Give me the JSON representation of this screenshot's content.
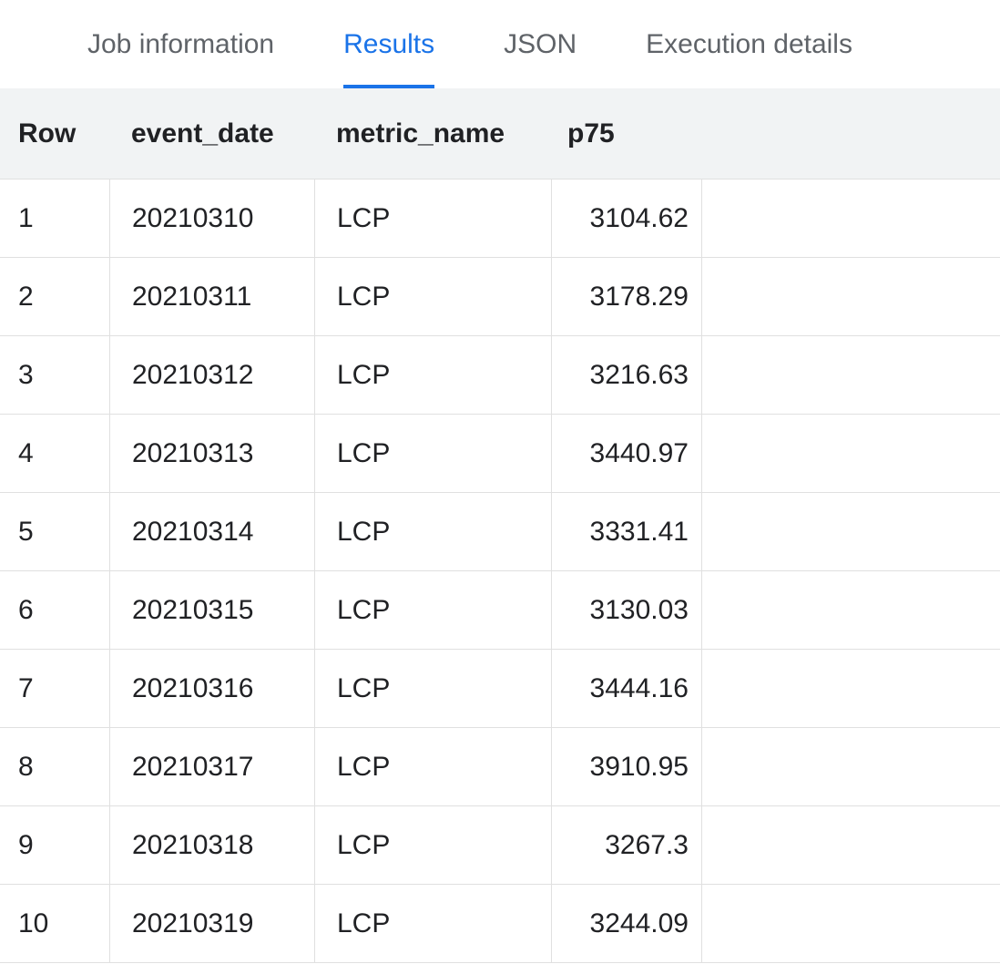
{
  "colors": {
    "active_tab": "#1a73e8",
    "header_background": "#f1f3f4",
    "row_border": "#e0e0e0",
    "tab_text": "#5f6368",
    "body_text": "#202124"
  },
  "tabs": [
    {
      "label": "Job information",
      "active": false
    },
    {
      "label": "Results",
      "active": true
    },
    {
      "label": "JSON",
      "active": false
    },
    {
      "label": "Execution details",
      "active": false
    }
  ],
  "table": {
    "columns": [
      "Row",
      "event_date",
      "metric_name",
      "p75"
    ],
    "rows": [
      [
        "1",
        "20210310",
        "LCP",
        "3104.62"
      ],
      [
        "2",
        "20210311",
        "LCP",
        "3178.29"
      ],
      [
        "3",
        "20210312",
        "LCP",
        "3216.63"
      ],
      [
        "4",
        "20210313",
        "LCP",
        "3440.97"
      ],
      [
        "5",
        "20210314",
        "LCP",
        "3331.41"
      ],
      [
        "6",
        "20210315",
        "LCP",
        "3130.03"
      ],
      [
        "7",
        "20210316",
        "LCP",
        "3444.16"
      ],
      [
        "8",
        "20210317",
        "LCP",
        "3910.95"
      ],
      [
        "9",
        "20210318",
        "LCP",
        "3267.3"
      ],
      [
        "10",
        "20210319",
        "LCP",
        "3244.09"
      ]
    ]
  }
}
